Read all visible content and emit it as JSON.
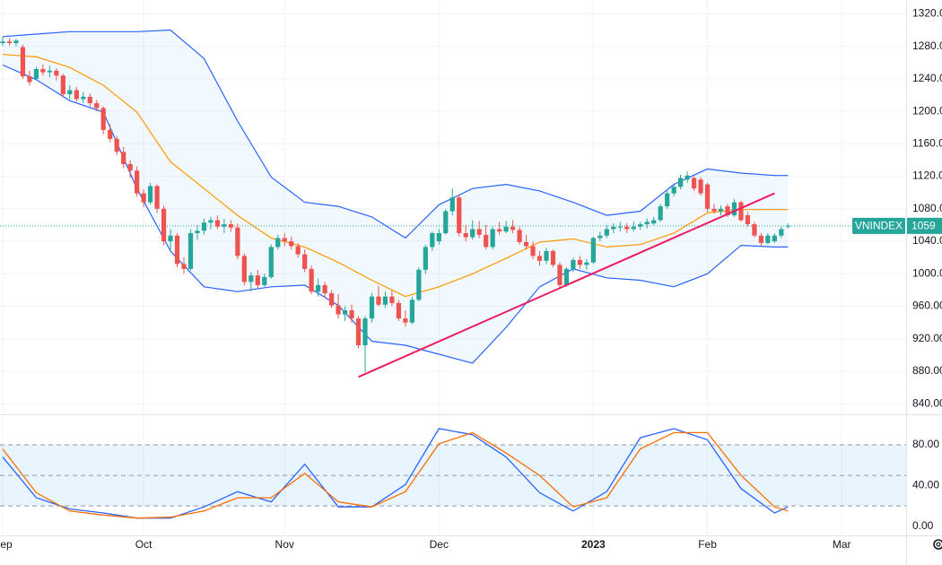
{
  "chart_data": [
    {
      "type": "candlestick",
      "symbol": "VNINDEX",
      "xlim": [
        -0.4,
        134.6
      ],
      "ylim": [
        827,
        1337
      ],
      "yticks": [
        {
          "value": 1320,
          "label": "1320.00"
        },
        {
          "value": 1280,
          "label": "1280.00"
        },
        {
          "value": 1240,
          "label": "1240.00"
        },
        {
          "value": 1200,
          "label": "1200.00"
        },
        {
          "value": 1160,
          "label": "1160.00"
        },
        {
          "value": 1120,
          "label": "1120.00"
        },
        {
          "value": 1080,
          "label": "1080.00"
        },
        {
          "value": 1040,
          "label": "1040.00"
        },
        {
          "value": 1000,
          "label": "1000.00"
        },
        {
          "value": 960,
          "label": "960.00"
        },
        {
          "value": 920,
          "label": "920.00"
        },
        {
          "value": 880,
          "label": "880.00"
        },
        {
          "value": 840,
          "label": "840.00"
        }
      ],
      "grid": true,
      "up_color": "#26a69a",
      "down_color": "#ef5350",
      "price_line_color": "#26a69a",
      "open": [
        1284,
        1286,
        1284,
        1279,
        1243,
        1240,
        1252,
        1248,
        1250,
        1244,
        1221,
        1226,
        1215,
        1218,
        1210,
        1204,
        1177,
        1166,
        1150,
        1135,
        1127,
        1099,
        1088,
        1108,
        1080,
        1040,
        1047,
        1012,
        1006,
        1050,
        1053,
        1063,
        1066,
        1058,
        1061,
        1057,
        1022,
        990,
        998,
        986,
        996,
        1033,
        1044,
        1040,
        1034,
        1024,
        1006,
        978,
        986,
        976,
        961,
        950,
        955,
        945,
        912,
        945,
        972,
        962,
        972,
        964,
        945,
        940,
        968,
        1005,
        1033,
        1040,
        1050,
        1077,
        1094,
        1050,
        1045,
        1055,
        1048,
        1033,
        1055,
        1052,
        1058,
        1054,
        1039,
        1034,
        1022,
        1016,
        1028,
        1011,
        986,
        1006,
        1017,
        1011,
        1014,
        1044,
        1047,
        1055,
        1058,
        1058,
        1055,
        1058,
        1061,
        1062,
        1066,
        1083,
        1099,
        1107,
        1116,
        1118,
        1116,
        1110,
        1080,
        1077,
        1083,
        1072,
        1088,
        1072,
        1061,
        1047,
        1038,
        1040,
        1047,
        1059
      ],
      "high": [
        1292,
        1290,
        1289,
        1282,
        1250,
        1255,
        1258,
        1256,
        1253,
        1246,
        1232,
        1230,
        1224,
        1222,
        1214,
        1206,
        1184,
        1170,
        1156,
        1140,
        1132,
        1104,
        1112,
        1110,
        1084,
        1055,
        1050,
        1020,
        1055,
        1060,
        1068,
        1070,
        1072,
        1068,
        1066,
        1062,
        1025,
        1002,
        1005,
        1000,
        1036,
        1048,
        1050,
        1046,
        1038,
        1030,
        1010,
        994,
        990,
        980,
        975,
        960,
        962,
        948,
        948,
        976,
        985,
        978,
        980,
        968,
        955,
        972,
        1008,
        1036,
        1052,
        1055,
        1080,
        1105,
        1098,
        1060,
        1066,
        1065,
        1060,
        1058,
        1064,
        1065,
        1066,
        1058,
        1048,
        1040,
        1028,
        1032,
        1030,
        1014,
        1008,
        1020,
        1022,
        1018,
        1046,
        1052,
        1060,
        1062,
        1064,
        1062,
        1064,
        1064,
        1068,
        1070,
        1086,
        1102,
        1110,
        1122,
        1126,
        1120,
        1119,
        1112,
        1086,
        1084,
        1086,
        1092,
        1090,
        1076,
        1064,
        1050,
        1050,
        1050,
        1058,
        1062
      ],
      "low": [
        1280,
        1281,
        1280,
        1240,
        1232,
        1238,
        1244,
        1242,
        1238,
        1218,
        1215,
        1212,
        1210,
        1206,
        1200,
        1172,
        1162,
        1146,
        1130,
        1118,
        1095,
        1082,
        1085,
        1075,
        1035,
        1030,
        1008,
        1000,
        1004,
        1042,
        1048,
        1055,
        1055,
        1050,
        1052,
        1018,
        986,
        978,
        982,
        984,
        994,
        1030,
        1034,
        1030,
        1020,
        1002,
        975,
        972,
        970,
        958,
        945,
        942,
        940,
        908,
        879,
        940,
        960,
        958,
        960,
        942,
        935,
        938,
        966,
        1000,
        1028,
        1036,
        1048,
        1072,
        1046,
        1040,
        1042,
        1044,
        1030,
        1030,
        1048,
        1050,
        1050,
        1036,
        1030,
        1018,
        1010,
        1012,
        1008,
        982,
        984,
        1002,
        1006,
        1005,
        1012,
        1040,
        1044,
        1050,
        1052,
        1050,
        1052,
        1054,
        1056,
        1060,
        1064,
        1080,
        1095,
        1104,
        1112,
        1102,
        1096,
        1076,
        1074,
        1072,
        1070,
        1070,
        1064,
        1058,
        1045,
        1034,
        1036,
        1038,
        1044,
        1056
      ],
      "close": [
        1286,
        1284,
        1287,
        1243,
        1236,
        1252,
        1248,
        1250,
        1244,
        1221,
        1226,
        1215,
        1218,
        1210,
        1204,
        1177,
        1166,
        1150,
        1135,
        1127,
        1099,
        1088,
        1108,
        1080,
        1040,
        1047,
        1012,
        1006,
        1050,
        1053,
        1063,
        1066,
        1058,
        1061,
        1057,
        1022,
        990,
        998,
        986,
        996,
        1033,
        1044,
        1040,
        1034,
        1024,
        1006,
        978,
        986,
        976,
        961,
        950,
        955,
        945,
        912,
        945,
        972,
        962,
        972,
        964,
        945,
        940,
        968,
        1005,
        1033,
        1050,
        1050,
        1077,
        1094,
        1050,
        1045,
        1055,
        1048,
        1033,
        1055,
        1052,
        1058,
        1054,
        1039,
        1034,
        1022,
        1016,
        1028,
        1011,
        986,
        1006,
        1017,
        1011,
        1014,
        1044,
        1047,
        1055,
        1058,
        1058,
        1055,
        1058,
        1061,
        1064,
        1066,
        1083,
        1099,
        1107,
        1118,
        1121,
        1105,
        1099,
        1080,
        1077,
        1080,
        1072,
        1088,
        1066,
        1061,
        1047,
        1038,
        1047,
        1047,
        1055,
        1059
      ],
      "bollinger": {
        "band_color": "#2962ff",
        "basis_color": "#ff9800",
        "fill": "#2196f3",
        "x": [
          0,
          5,
          10,
          15,
          20,
          25,
          30,
          35,
          40,
          45,
          50,
          55,
          60,
          65,
          70,
          75,
          80,
          85,
          90,
          95,
          100,
          105,
          110,
          115,
          117
        ],
        "upper": [
          1292,
          1295,
          1298,
          1298,
          1298,
          1300,
          1265,
          1188,
          1119,
          1088,
          1083,
          1070,
          1044,
          1085,
          1105,
          1110,
          1102,
          1088,
          1072,
          1077,
          1110,
          1129,
          1124,
          1121,
          1121
        ],
        "basis": [
          1270,
          1267,
          1254,
          1232,
          1199,
          1138,
          1105,
          1072,
          1044,
          1033,
          1014,
          992,
          972,
          984,
          1000,
          1019,
          1039,
          1043,
          1033,
          1036,
          1050,
          1075,
          1079,
          1079,
          1079
        ],
        "lower": [
          1257,
          1239,
          1213,
          1199,
          1105,
          1028,
          984,
          978,
          984,
          986,
          961,
          917,
          912,
          901,
          890,
          934,
          984,
          1006,
          995,
          992,
          984,
          1000,
          1035,
          1033,
          1033
        ]
      },
      "trendline": {
        "color": "#e91e63",
        "x": [
          53,
          115
        ],
        "values": [
          873,
          1099
        ]
      }
    },
    {
      "type": "line",
      "xlim": [
        -0.4,
        134.6
      ],
      "ylim": [
        -9,
        110
      ],
      "xticks": [
        {
          "value": 0,
          "label": "Sep"
        },
        {
          "value": 21,
          "label": "Oct"
        },
        {
          "value": 42,
          "label": "Nov"
        },
        {
          "value": 65,
          "label": "Dec"
        },
        {
          "value": 88,
          "label": "2023"
        },
        {
          "value": 105,
          "label": "Feb"
        },
        {
          "value": 125,
          "label": "Mar"
        }
      ],
      "yticks": [
        {
          "value": 80,
          "label": "80.00"
        },
        {
          "value": 40,
          "label": "40.00"
        },
        {
          "value": 0,
          "label": "0.00"
        }
      ],
      "band": [
        20,
        80
      ],
      "band_color": "#2196f3",
      "levels": [
        80,
        50,
        20
      ],
      "x": [
        0,
        5,
        10,
        15,
        20,
        25,
        30,
        35,
        40,
        45,
        50,
        55,
        60,
        65,
        70,
        75,
        80,
        85,
        90,
        95,
        100,
        105,
        110,
        115,
        117
      ],
      "series": [
        {
          "color": "#2962ff",
          "values": [
            68,
            28,
            17,
            13,
            8,
            8,
            19,
            34,
            24,
            61,
            19,
            19,
            41,
            96,
            90,
            68,
            33,
            15,
            34,
            87,
            96,
            85,
            37,
            13,
            19
          ]
        },
        {
          "color": "#ff6d00",
          "values": [
            76,
            33,
            15,
            11,
            8,
            9,
            15,
            28,
            28,
            52,
            24,
            19,
            34,
            81,
            92,
            72,
            50,
            19,
            28,
            76,
            92,
            92,
            50,
            19,
            15
          ]
        }
      ]
    }
  ]
}
